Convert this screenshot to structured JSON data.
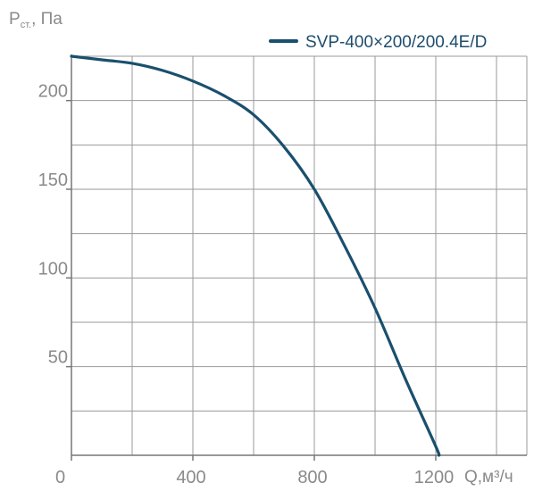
{
  "chart_data": {
    "type": "line",
    "ylabel_main": "P",
    "ylabel_sub": "ст.",
    "ylabel_unit": ", Па",
    "xlabel": "Q,м³/ч",
    "xlim": [
      0,
      1500
    ],
    "ylim": [
      0,
      225
    ],
    "x_ticks": [
      0,
      400,
      800,
      1200
    ],
    "x_tick_labels": [
      "0",
      "400",
      "800",
      "1200"
    ],
    "y_ticks": [
      50,
      100,
      150,
      200
    ],
    "y_tick_labels": [
      "50",
      "100",
      "150",
      "200"
    ],
    "grid": true,
    "legend_position": "top-right",
    "series": [
      {
        "name": "SVP-400×200/200.4E/D",
        "color": "#1a4f6e",
        "x": [
          0,
          100,
          200,
          300,
          400,
          500,
          600,
          700,
          800,
          900,
          1000,
          1100,
          1200,
          1210
        ],
        "y": [
          225,
          223,
          221,
          217,
          211,
          203,
          192,
          174,
          150,
          118,
          83,
          43,
          5,
          0
        ]
      }
    ]
  }
}
